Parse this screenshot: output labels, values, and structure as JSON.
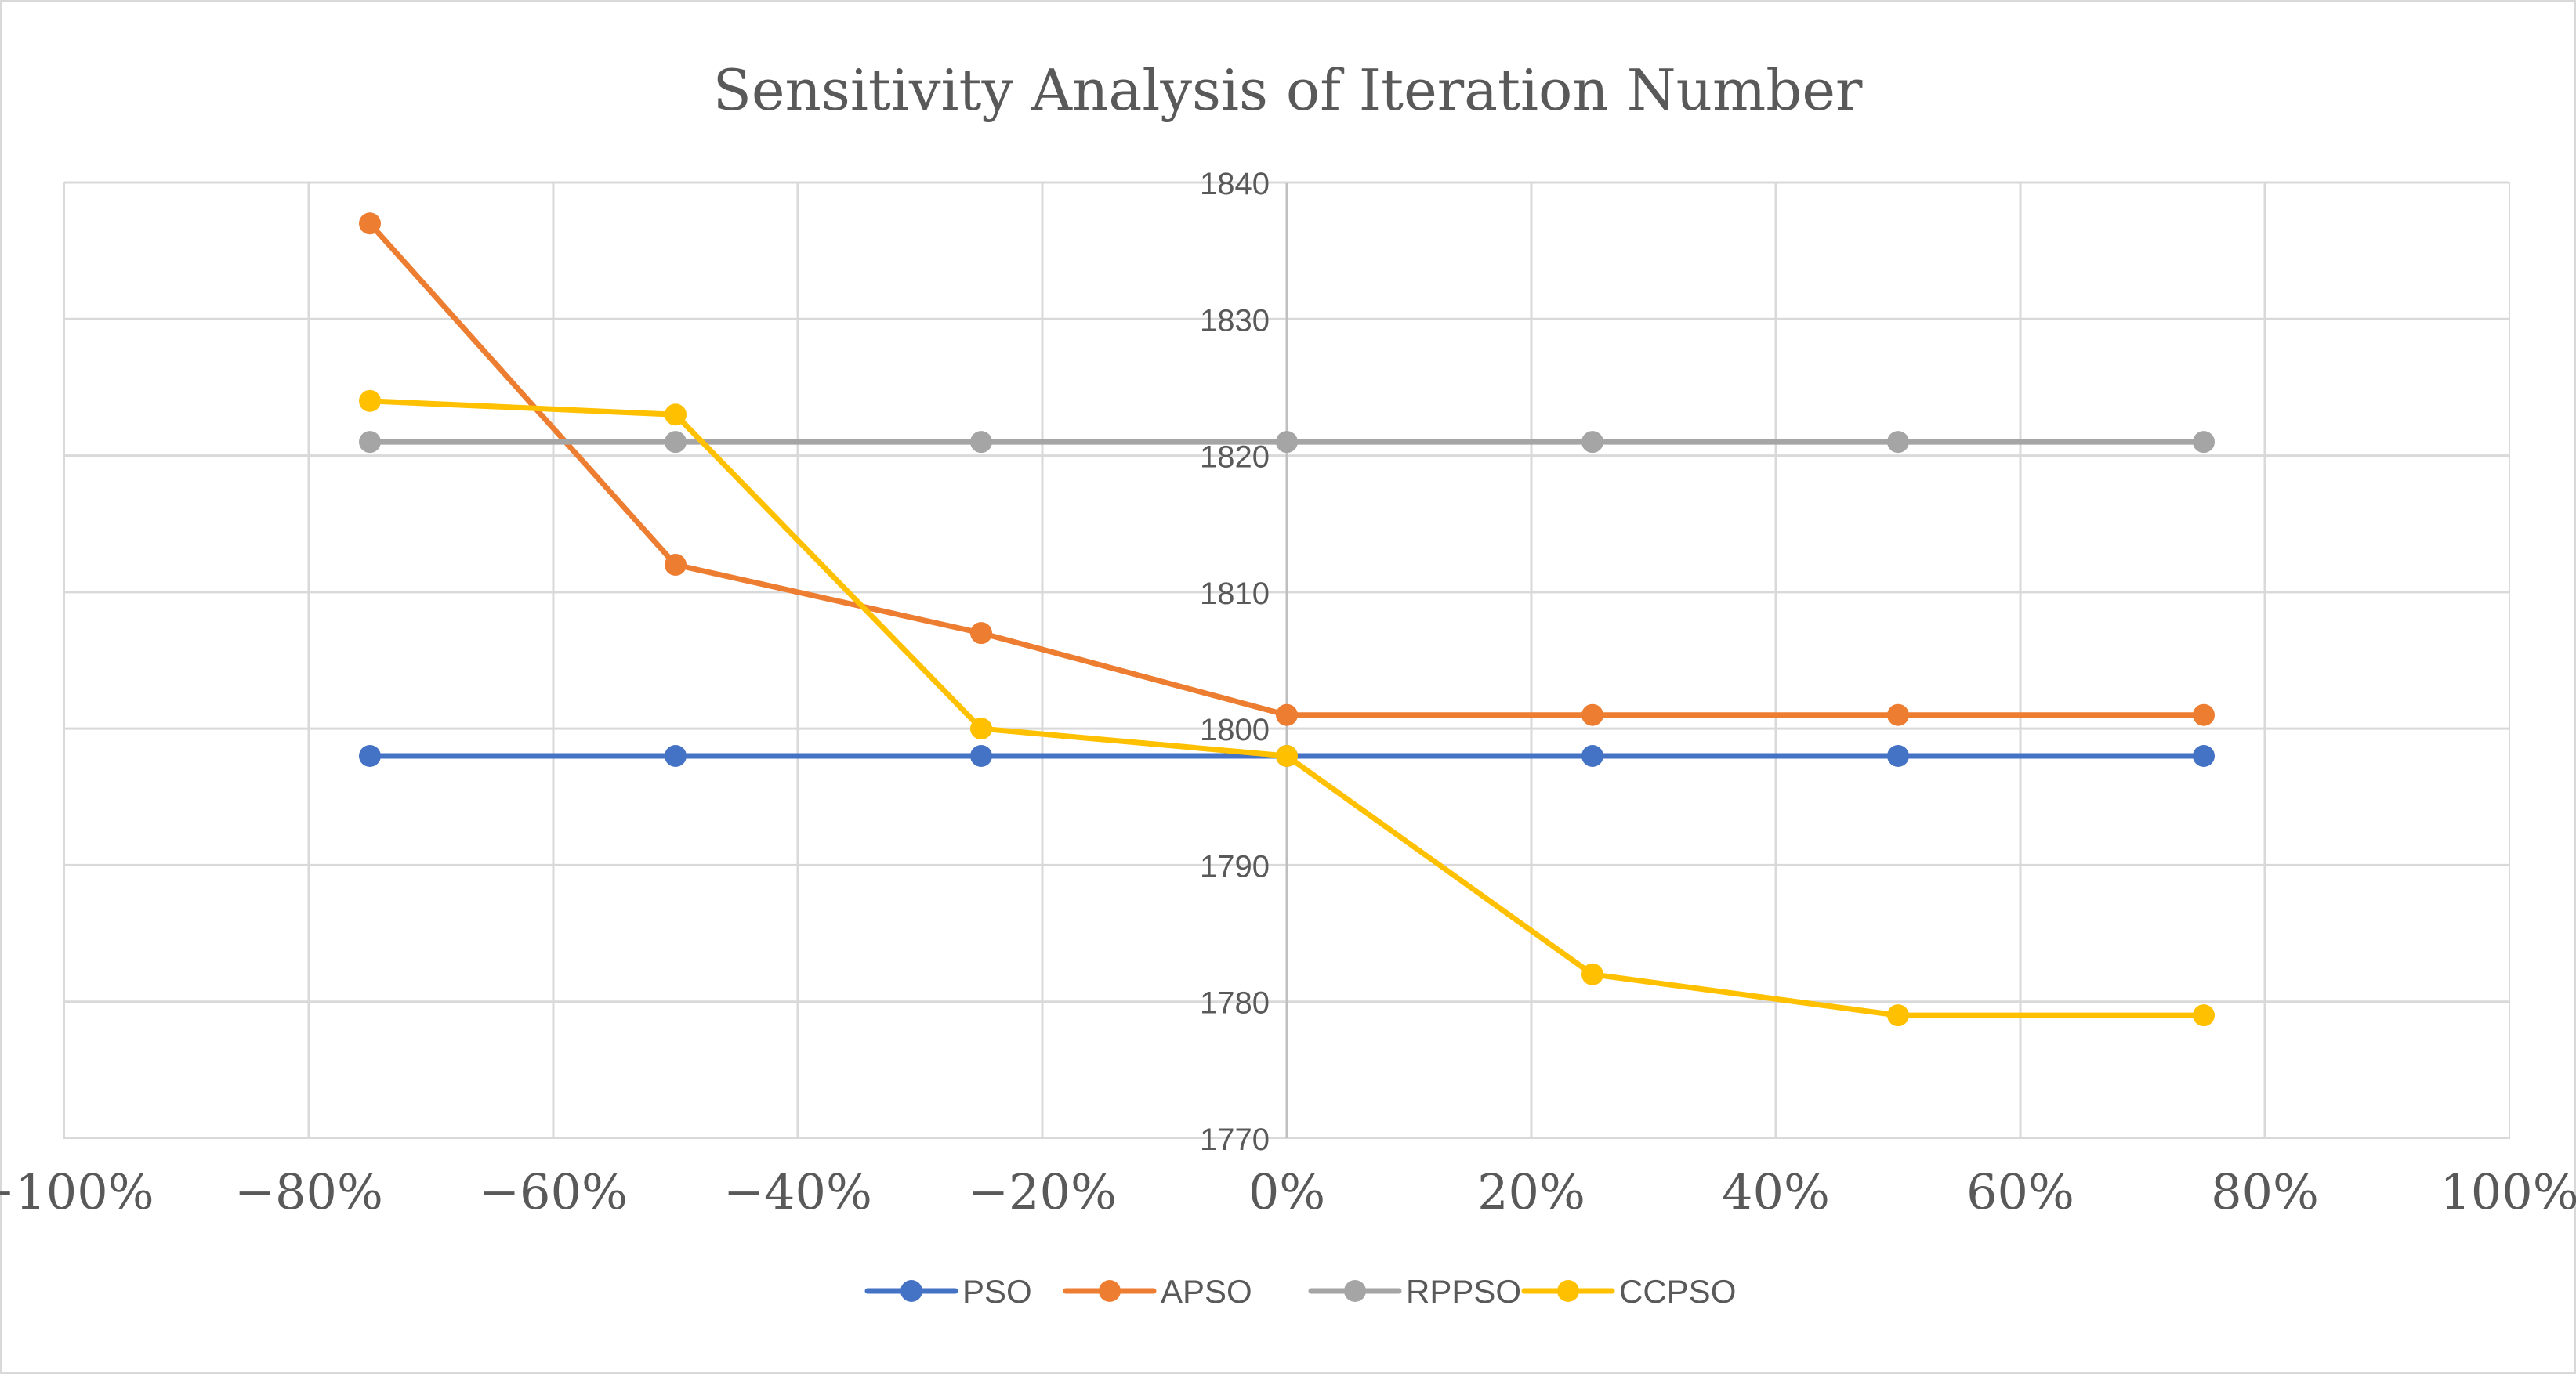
{
  "chart_data": {
    "type": "line",
    "title": "Sensitivity Analysis of Iteration Number",
    "xlabel": "",
    "ylabel": "",
    "xlim": [
      -100,
      100
    ],
    "ylim": [
      1770,
      1840
    ],
    "x_ticks": [
      -100,
      -80,
      -60,
      -40,
      -20,
      0,
      20,
      40,
      60,
      80,
      100
    ],
    "x_tick_labels": [
      "−100%",
      "−80%",
      "−60%",
      "−40%",
      "−20%",
      "0%",
      "20%",
      "40%",
      "60%",
      "80%",
      "100%"
    ],
    "y_ticks": [
      1770,
      1780,
      1790,
      1800,
      1810,
      1820,
      1830,
      1840
    ],
    "y_tick_labels": [
      "1770",
      "1780",
      "1790",
      "1800",
      "1810",
      "1820",
      "1830",
      "1840"
    ],
    "x": [
      -75,
      -50,
      -25,
      0,
      25,
      50,
      75
    ],
    "series": [
      {
        "name": "PSO",
        "color": "#4472C4",
        "values": [
          1798,
          1798,
          1798,
          1798,
          1798,
          1798,
          1798
        ]
      },
      {
        "name": "APSO",
        "color": "#ED7D31",
        "values": [
          1837,
          1812,
          1807,
          1801,
          1801,
          1801,
          1801
        ]
      },
      {
        "name": "RPPSO",
        "color": "#A5A5A5",
        "values": [
          1821,
          1821,
          1821,
          1821,
          1821,
          1821,
          1821
        ]
      },
      {
        "name": "CCPSO",
        "color": "#FFC000",
        "values": [
          1824,
          1823,
          1800,
          1798,
          1782,
          1779,
          1779
        ]
      }
    ],
    "grid": true,
    "legend_position": "bottom-center"
  }
}
